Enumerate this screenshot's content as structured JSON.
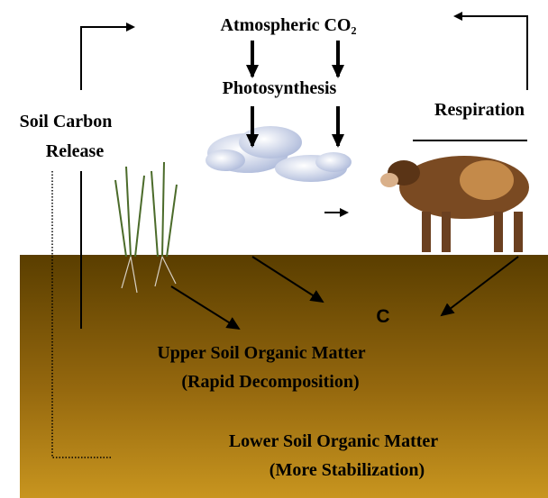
{
  "labels": {
    "atmospheric": "Atmospheric CO₂",
    "photosynthesis": "Photosynthesis",
    "respiration": "Respiration",
    "soil_carbon_release": [
      "Soil Carbon",
      "Release"
    ],
    "carbon": "C",
    "upper": [
      "Upper Soil Organic Matter",
      "(Rapid Decomposition)"
    ],
    "lower": [
      "Lower Soil Organic Matter",
      "(More Stabilization)"
    ]
  }
}
